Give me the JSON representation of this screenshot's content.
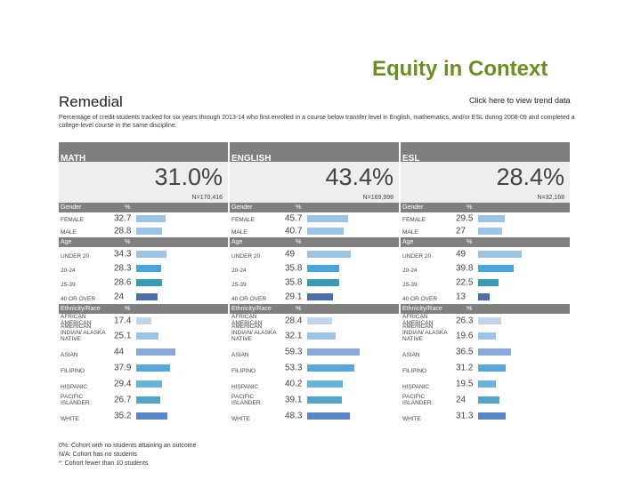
{
  "slide": {
    "title": "Equity in Context",
    "section_title": "Remedial",
    "trend_link": "Click here to view trend data",
    "description": "Percentage of credit students tracked for six years through 2013-14 who first enrolled in a course below transfer level in English, mathematics, and/or ESL during 2008-09 and completed a college-level course in the same discipline.",
    "footnotes": [
      "0%: Cohort with no students attaining an outcome",
      "N/A: Cohort has no students",
      "*: Cohort fewer than 10 students"
    ]
  },
  "colors": {
    "gender": "#9dc3e6",
    "age": [
      "#9dc3e6",
      "#4aa3d9",
      "#3a9bb3",
      "#4a6fa5"
    ],
    "ethnicity": [
      "#c5d5e8",
      "#9dc3e6",
      "#8aa9d6",
      "#5aa5da",
      "#6cb3d9",
      "#5aa3c8",
      "#5c85c6"
    ],
    "header_bg": "#7f7f7f",
    "big_bg": "#eeeeee",
    "title_green": "#6b8e23"
  },
  "chart_data": [
    {
      "type": "bar",
      "title": "MATH",
      "overall": "31.0%",
      "n": "N=170,416",
      "groups": [
        {
          "name": "Gender",
          "pct_label": "%",
          "categories": [
            "FEMALE",
            "MALE"
          ],
          "values": [
            32.7,
            28.8
          ]
        },
        {
          "name": "Age",
          "pct_label": "%",
          "categories": [
            "UNDER 20",
            "20-24",
            "25-39",
            "40 OR OVER"
          ],
          "values": [
            34.3,
            28.3,
            28.6,
            24.0
          ]
        },
        {
          "name": "Ethnicity/Race",
          "pct_label": "%",
          "categories": [
            "AFRICAN AMERICAN",
            "AMERICAN INDIAN/ ALASKA NATIVE",
            "ASIAN",
            "FILIPINO",
            "HISPANIC",
            "PACIFIC ISLANDER",
            "WHITE"
          ],
          "values": [
            17.4,
            25.1,
            44.0,
            37.9,
            29.4,
            26.7,
            35.2
          ]
        }
      ]
    },
    {
      "type": "bar",
      "title": "ENGLISH",
      "overall": "43.4%",
      "n": "N=169,998",
      "groups": [
        {
          "name": "Gender",
          "pct_label": "%",
          "categories": [
            "FEMALE",
            "MALE"
          ],
          "values": [
            45.7,
            40.7
          ]
        },
        {
          "name": "Age",
          "pct_label": "%",
          "categories": [
            "UNDER 20",
            "20-24",
            "25-39",
            "40 OR OVER"
          ],
          "values": [
            49.0,
            35.8,
            35.8,
            29.1
          ]
        },
        {
          "name": "Ethnicity/Race",
          "pct_label": "%",
          "categories": [
            "AFRICAN AMERICAN",
            "AMERICAN INDIAN/ ALASKA NATIVE",
            "ASIAN",
            "FILIPINO",
            "HISPANIC",
            "PACIFIC ISLANDER",
            "WHITE"
          ],
          "values": [
            28.4,
            32.1,
            59.3,
            53.3,
            40.2,
            39.1,
            48.3
          ]
        }
      ]
    },
    {
      "type": "bar",
      "title": "ESL",
      "overall": "28.4%",
      "n": "N=32,168",
      "groups": [
        {
          "name": "Gender",
          "pct_label": "%",
          "categories": [
            "FEMALE",
            "MALE"
          ],
          "values": [
            29.5,
            27.0
          ]
        },
        {
          "name": "Age",
          "pct_label": "%",
          "categories": [
            "UNDER 20",
            "20-24",
            "25-39",
            "40 OR OVER"
          ],
          "values": [
            49.0,
            39.8,
            22.5,
            13.0
          ]
        },
        {
          "name": "Ethnicity/Race",
          "pct_label": "%",
          "categories": [
            "AFRICAN AMERICAN",
            "AMERICAN INDIAN/ ALASKA NATIVE",
            "ASIAN",
            "FILIPINO",
            "HISPANIC",
            "PACIFIC ISLANDER",
            "WHITE"
          ],
          "values": [
            26.3,
            19.6,
            36.5,
            31.2,
            19.5,
            24.0,
            31.3
          ]
        }
      ]
    }
  ]
}
